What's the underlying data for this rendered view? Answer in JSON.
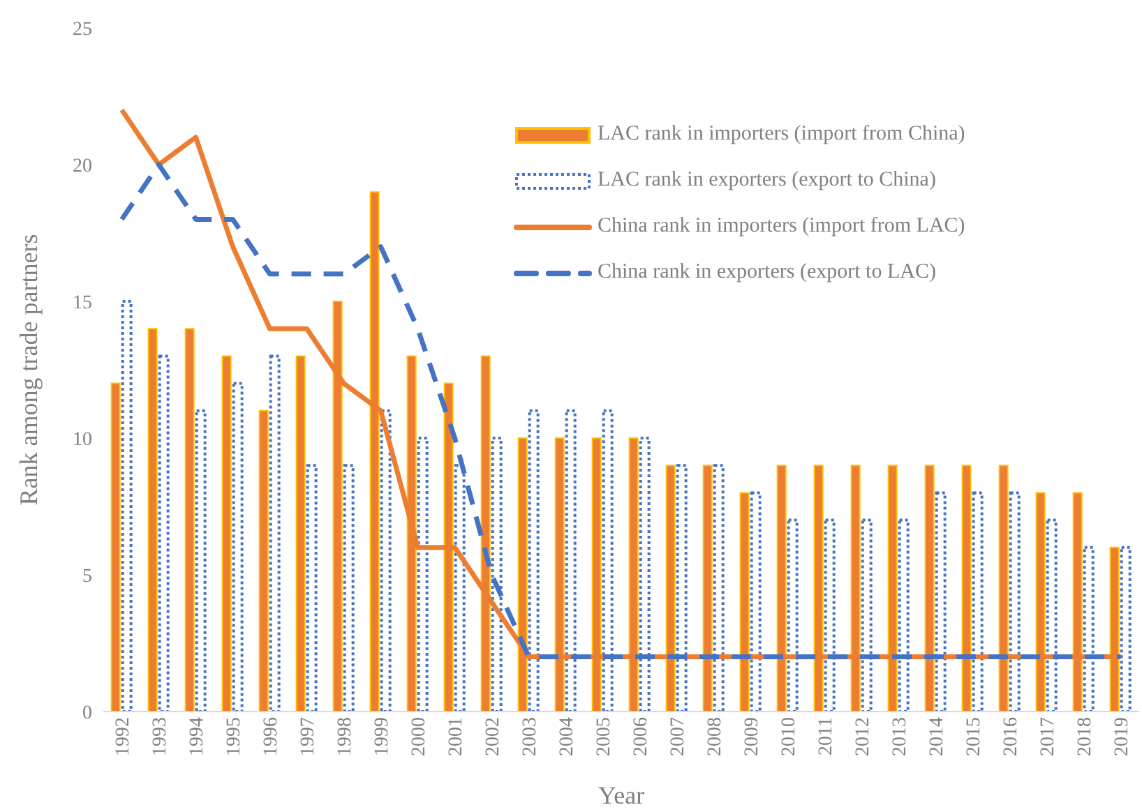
{
  "chart_data": {
    "type": "bar",
    "xlabel": "Year",
    "ylabel": "Rank among trade partners",
    "categories": [
      "1992",
      "1993",
      "1994",
      "1995",
      "1996",
      "1997",
      "1998",
      "1999",
      "2000",
      "2001",
      "2002",
      "2003",
      "2004",
      "2005",
      "2006",
      "2007",
      "2008",
      "2009",
      "2010",
      "2011",
      "2012",
      "2013",
      "2014",
      "2015",
      "2016",
      "2017",
      "2018",
      "2019"
    ],
    "series": [
      {
        "name": "LAC rank in importers (import from China)",
        "color": "#ed7d31",
        "line_style": "solid",
        "values": [
          12,
          14,
          14,
          13,
          11,
          13,
          15,
          19,
          13,
          12,
          13,
          10,
          10,
          10,
          10,
          9,
          9,
          8,
          9,
          9,
          9,
          9,
          9,
          9,
          9,
          8,
          8,
          6
        ]
      },
      {
        "name": "LAC rank in exporters (export to China)",
        "color": "#4472c4",
        "line_style": "dotted",
        "values": [
          15,
          13,
          11,
          12,
          13,
          9,
          9,
          11,
          10,
          9,
          10,
          11,
          11,
          11,
          10,
          9,
          9,
          8,
          7,
          7,
          7,
          7,
          8,
          8,
          8,
          7,
          6,
          6
        ]
      },
      {
        "name": "China rank in importers (import from  LAC)",
        "type": "line",
        "color": "#ed7d31",
        "line_style": "solid",
        "values": [
          22,
          20,
          21,
          17,
          14,
          14,
          12,
          11,
          6,
          6,
          4,
          2,
          2,
          2,
          2,
          2,
          2,
          2,
          2,
          2,
          2,
          2,
          2,
          2,
          2,
          2,
          2,
          2
        ]
      },
      {
        "name": "China rank in exporters (export to LAC)",
        "type": "line",
        "color": "#4472c4",
        "line_style": "dashed",
        "values": [
          18,
          20,
          18,
          18,
          16,
          16,
          16,
          17,
          14,
          10,
          5,
          2,
          2,
          2,
          2,
          2,
          2,
          2,
          2,
          2,
          2,
          2,
          2,
          2,
          2,
          2,
          2,
          2
        ]
      }
    ],
    "ylim": [
      0,
      25
    ],
    "yticks": [
      0,
      5,
      10,
      15,
      20,
      25
    ],
    "grid": false,
    "legend": "top right",
    "marker": "none"
  }
}
